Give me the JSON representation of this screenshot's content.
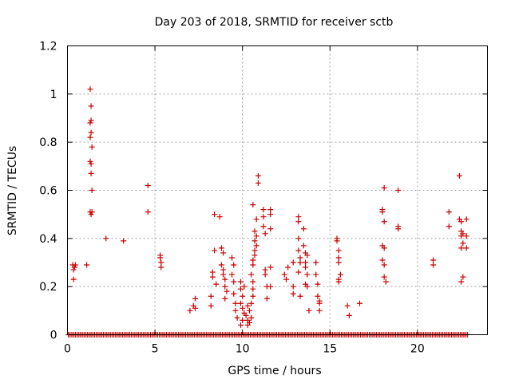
{
  "chart_data": {
    "type": "scatter",
    "title": "Day 203 of 2018, SRMTID for receiver sctb",
    "xlabel": "GPS time / hours",
    "ylabel": "SRMTID / TECUs",
    "xlim": [
      0,
      24
    ],
    "ylim": [
      0,
      1.2
    ],
    "xticks": [
      0,
      5,
      10,
      15,
      20
    ],
    "yticks": [
      0,
      0.2,
      0.4,
      0.6,
      0.8,
      1,
      1.2
    ],
    "ytick_labels": [
      "0",
      "0.2",
      "0.4",
      "0.6",
      "0.8",
      "1",
      "1.2"
    ],
    "grid": true,
    "marker": "+",
    "marker_color": "#cc0000",
    "zero_band": {
      "x_start": 0.05,
      "x_end": 22.9,
      "step": 0.1,
      "value": 0
    },
    "points": [
      [
        0.3,
        0.29
      ],
      [
        0.35,
        0.27
      ],
      [
        0.4,
        0.28
      ],
      [
        0.35,
        0.23
      ],
      [
        0.45,
        0.29
      ],
      [
        1.1,
        0.29
      ],
      [
        1.3,
        1.02
      ],
      [
        1.35,
        0.95
      ],
      [
        1.35,
        0.89
      ],
      [
        1.3,
        0.88
      ],
      [
        1.35,
        0.84
      ],
      [
        1.3,
        0.82
      ],
      [
        1.4,
        0.78
      ],
      [
        1.3,
        0.72
      ],
      [
        1.35,
        0.71
      ],
      [
        1.35,
        0.67
      ],
      [
        1.4,
        0.6
      ],
      [
        1.3,
        0.51
      ],
      [
        1.35,
        0.5
      ],
      [
        1.4,
        0.51
      ],
      [
        2.2,
        0.4
      ],
      [
        3.2,
        0.39
      ],
      [
        4.6,
        0.62
      ],
      [
        4.6,
        0.51
      ],
      [
        5.3,
        0.33
      ],
      [
        5.3,
        0.32
      ],
      [
        5.35,
        0.3
      ],
      [
        5.35,
        0.28
      ],
      [
        7.0,
        0.1
      ],
      [
        7.2,
        0.12
      ],
      [
        7.3,
        0.15
      ],
      [
        7.3,
        0.11
      ],
      [
        8.2,
        0.16
      ],
      [
        8.2,
        0.12
      ],
      [
        8.3,
        0.26
      ],
      [
        8.3,
        0.24
      ],
      [
        8.4,
        0.35
      ],
      [
        8.5,
        0.21
      ],
      [
        8.4,
        0.5
      ],
      [
        8.7,
        0.49
      ],
      [
        8.8,
        0.36
      ],
      [
        8.9,
        0.34
      ],
      [
        8.8,
        0.29
      ],
      [
        8.9,
        0.27
      ],
      [
        8.9,
        0.25
      ],
      [
        9.0,
        0.23
      ],
      [
        9.0,
        0.2
      ],
      [
        9.1,
        0.18
      ],
      [
        9.0,
        0.15
      ],
      [
        9.4,
        0.32
      ],
      [
        9.5,
        0.29
      ],
      [
        9.4,
        0.25
      ],
      [
        9.5,
        0.22
      ],
      [
        9.5,
        0.17
      ],
      [
        9.6,
        0.13
      ],
      [
        9.6,
        0.1
      ],
      [
        9.7,
        0.07
      ],
      [
        9.9,
        0.22
      ],
      [
        9.9,
        0.19
      ],
      [
        10.0,
        0.16
      ],
      [
        9.9,
        0.13
      ],
      [
        10.0,
        0.11
      ],
      [
        10.1,
        0.09
      ],
      [
        10.0,
        0.06
      ],
      [
        9.9,
        0.04
      ],
      [
        10.1,
        0.2
      ],
      [
        10.2,
        0.08
      ],
      [
        10.3,
        0.06
      ],
      [
        10.3,
        0.04
      ],
      [
        10.4,
        0.05
      ],
      [
        10.5,
        0.07
      ],
      [
        10.4,
        0.1
      ],
      [
        10.5,
        0.13
      ],
      [
        10.3,
        0.12
      ],
      [
        10.6,
        0.22
      ],
      [
        10.5,
        0.25
      ],
      [
        10.6,
        0.29
      ],
      [
        10.6,
        0.31
      ],
      [
        10.7,
        0.33
      ],
      [
        10.7,
        0.35
      ],
      [
        10.8,
        0.37
      ],
      [
        10.7,
        0.39
      ],
      [
        10.8,
        0.41
      ],
      [
        10.7,
        0.43
      ],
      [
        10.6,
        0.19
      ],
      [
        10.6,
        0.16
      ],
      [
        10.6,
        0.54
      ],
      [
        10.9,
        0.66
      ],
      [
        10.9,
        0.63
      ],
      [
        10.8,
        0.48
      ],
      [
        11.2,
        0.52
      ],
      [
        11.2,
        0.49
      ],
      [
        11.2,
        0.45
      ],
      [
        11.3,
        0.42
      ],
      [
        11.3,
        0.27
      ],
      [
        11.3,
        0.25
      ],
      [
        11.4,
        0.2
      ],
      [
        11.4,
        0.15
      ],
      [
        11.6,
        0.52
      ],
      [
        11.6,
        0.5
      ],
      [
        11.6,
        0.44
      ],
      [
        11.6,
        0.28
      ],
      [
        11.6,
        0.2
      ],
      [
        12.4,
        0.25
      ],
      [
        12.5,
        0.23
      ],
      [
        12.6,
        0.28
      ],
      [
        12.9,
        0.2
      ],
      [
        12.9,
        0.17
      ],
      [
        12.9,
        0.3
      ],
      [
        13.2,
        0.49
      ],
      [
        13.2,
        0.47
      ],
      [
        13.2,
        0.4
      ],
      [
        13.2,
        0.35
      ],
      [
        13.3,
        0.32
      ],
      [
        13.3,
        0.3
      ],
      [
        13.2,
        0.26
      ],
      [
        13.3,
        0.16
      ],
      [
        13.5,
        0.44
      ],
      [
        13.5,
        0.37
      ],
      [
        13.6,
        0.34
      ],
      [
        13.6,
        0.3
      ],
      [
        13.6,
        0.28
      ],
      [
        13.7,
        0.25
      ],
      [
        13.6,
        0.21
      ],
      [
        13.7,
        0.2
      ],
      [
        13.8,
        0.1
      ],
      [
        13.7,
        0.33
      ],
      [
        14.2,
        0.3
      ],
      [
        14.2,
        0.25
      ],
      [
        14.3,
        0.21
      ],
      [
        14.3,
        0.16
      ],
      [
        14.4,
        0.14
      ],
      [
        14.4,
        0.13
      ],
      [
        14.4,
        0.1
      ],
      [
        15.4,
        0.4
      ],
      [
        15.4,
        0.39
      ],
      [
        15.5,
        0.35
      ],
      [
        15.5,
        0.32
      ],
      [
        15.5,
        0.3
      ],
      [
        15.6,
        0.25
      ],
      [
        15.5,
        0.23
      ],
      [
        15.5,
        0.22
      ],
      [
        16.0,
        0.12
      ],
      [
        16.1,
        0.08
      ],
      [
        16.7,
        0.13
      ],
      [
        18.0,
        0.52
      ],
      [
        18.0,
        0.51
      ],
      [
        18.1,
        0.47
      ],
      [
        18.0,
        0.37
      ],
      [
        18.1,
        0.36
      ],
      [
        18.0,
        0.31
      ],
      [
        18.1,
        0.29
      ],
      [
        18.1,
        0.24
      ],
      [
        18.2,
        0.22
      ],
      [
        18.1,
        0.61
      ],
      [
        18.9,
        0.6
      ],
      [
        18.9,
        0.45
      ],
      [
        18.9,
        0.44
      ],
      [
        20.9,
        0.31
      ],
      [
        20.9,
        0.29
      ],
      [
        21.8,
        0.51
      ],
      [
        21.8,
        0.45
      ],
      [
        22.4,
        0.66
      ],
      [
        22.4,
        0.48
      ],
      [
        22.5,
        0.47
      ],
      [
        22.5,
        0.43
      ],
      [
        22.6,
        0.42
      ],
      [
        22.5,
        0.41
      ],
      [
        22.6,
        0.38
      ],
      [
        22.5,
        0.36
      ],
      [
        22.6,
        0.24
      ],
      [
        22.5,
        0.22
      ],
      [
        22.8,
        0.48
      ],
      [
        22.8,
        0.41
      ],
      [
        22.8,
        0.36
      ]
    ]
  }
}
